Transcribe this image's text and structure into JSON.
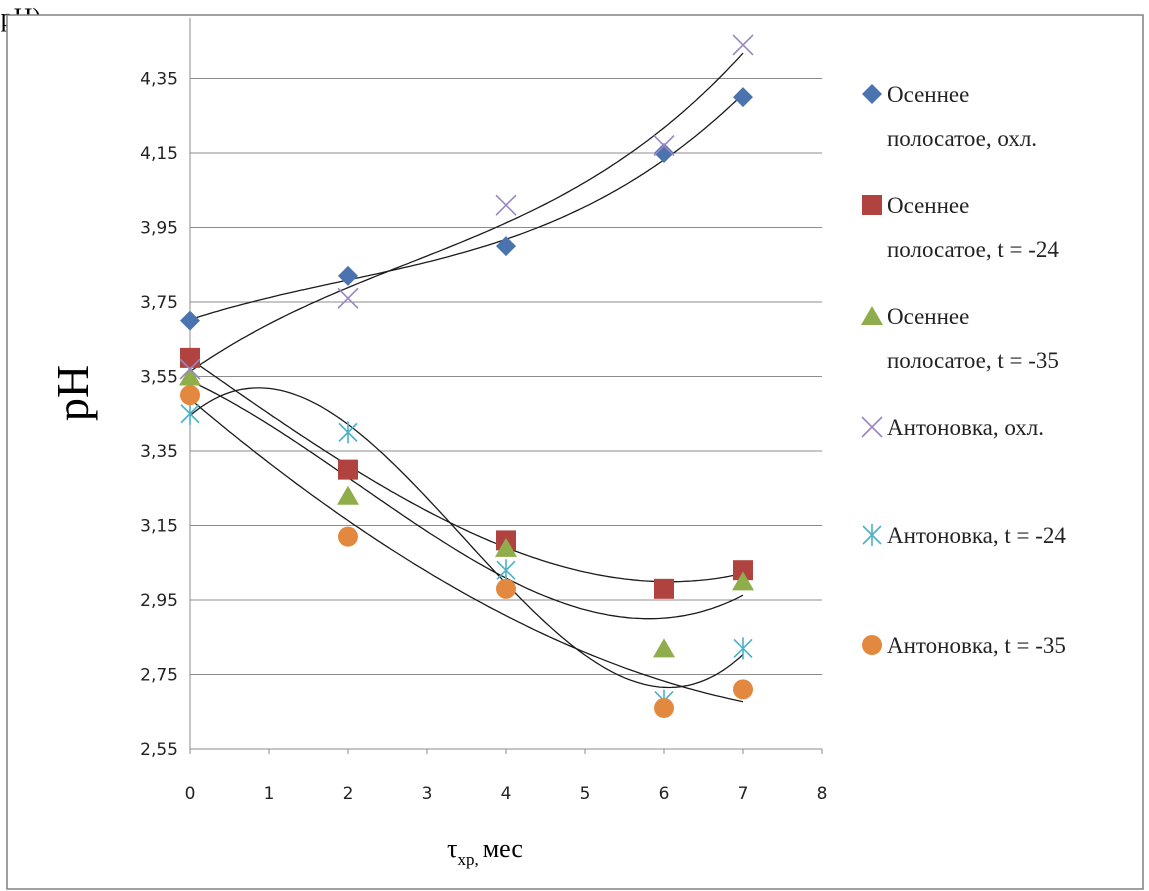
{
  "caption_fragment": "(рН)",
  "chart_data": {
    "type": "scatter",
    "title": "",
    "ylabel": "pH",
    "xlabel": {
      "main": "τ",
      "sub": "хр,",
      "unit": "мес"
    },
    "xlim": [
      0,
      8
    ],
    "ylim": [
      2.55,
      4.45
    ],
    "x_ticks": [
      "0",
      "1",
      "2",
      "3",
      "4",
      "5",
      "6",
      "7",
      "8"
    ],
    "y_ticks": [
      "2,55",
      "2,75",
      "2,95",
      "3,15",
      "3,35",
      "3,55",
      "3,75",
      "3,95",
      "4,15",
      "4,35"
    ],
    "grid": "horizontal",
    "legend_position": "right",
    "trendlines": "polynomial",
    "x": [
      0,
      2,
      4,
      6,
      7
    ],
    "series": [
      {
        "name": "Осеннее полосатое, охл.",
        "name_lines": [
          "Осеннее",
          "полосатое, охл."
        ],
        "marker": "diamond",
        "color": "#4a73b0",
        "values": [
          3.7,
          3.82,
          3.9,
          4.15,
          4.3
        ]
      },
      {
        "name": "Осеннее полосатое, t = -24",
        "name_lines": [
          "Осеннее",
          "полосатое, t = -24"
        ],
        "marker": "square",
        "color": "#b04340",
        "values": [
          3.6,
          3.3,
          3.11,
          2.98,
          3.03
        ]
      },
      {
        "name": "Осеннее полосатое, t = -35",
        "name_lines": [
          "Осеннее",
          "полосатое, t = -35"
        ],
        "marker": "triangle",
        "color": "#8fad4a",
        "values": [
          3.55,
          3.23,
          3.09,
          2.82,
          3.0
        ]
      },
      {
        "name": "Антоновка, охл.",
        "name_lines": [
          "Антоновка, охл."
        ],
        "marker": "x",
        "color": "#9a86c2",
        "values": [
          3.57,
          3.76,
          4.01,
          4.17,
          4.44
        ]
      },
      {
        "name": "Антоновка, t = -24",
        "name_lines": [
          "Антоновка, t = -24"
        ],
        "marker": "asterisk",
        "color": "#4bb0c8",
        "values": [
          3.45,
          3.4,
          3.03,
          2.68,
          2.82
        ]
      },
      {
        "name": "Антоновка, t = -35",
        "name_lines": [
          "Антоновка, t = -35"
        ],
        "marker": "circle",
        "color": "#e3893f",
        "values": [
          3.5,
          3.12,
          2.98,
          2.66,
          2.71
        ]
      }
    ]
  }
}
